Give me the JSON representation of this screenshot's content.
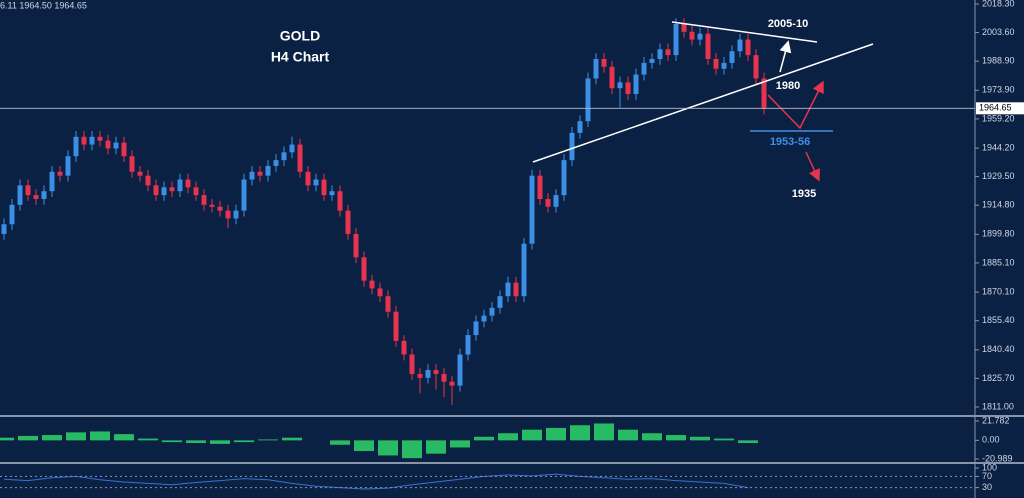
{
  "chart_data": [
    {
      "type": "candlestick",
      "title": "GOLD",
      "subtitle": "H4 Chart",
      "info_text": "6.11 1964.50 1964.65",
      "annotations": [
        "2005-10",
        "1980",
        "1953-56",
        "1935"
      ],
      "current_price": 1964.65,
      "up_color": "#3d8fe6",
      "down_color": "#e8334f",
      "ylim": [
        1811.0,
        2018.3
      ],
      "yticks": [
        {
          "value": 2018.3,
          "label": "2018.30"
        },
        {
          "value": 2003.6,
          "label": "2003.60"
        },
        {
          "value": 1988.9,
          "label": "1988.90"
        },
        {
          "value": 1973.9,
          "label": "1973.90"
        },
        {
          "value": 1959.2,
          "label": "1959.20"
        },
        {
          "value": 1944.2,
          "label": "1944.20"
        },
        {
          "value": 1929.5,
          "label": "1929.50"
        },
        {
          "value": 1914.8,
          "label": "1914.80"
        },
        {
          "value": 1899.8,
          "label": "1899.80"
        },
        {
          "value": 1885.1,
          "label": "1885.10"
        },
        {
          "value": 1870.1,
          "label": "1870.10"
        },
        {
          "value": 1855.4,
          "label": "1855.40"
        },
        {
          "value": 1840.4,
          "label": "1840.40"
        },
        {
          "value": 1825.7,
          "label": "1825.70"
        },
        {
          "value": 1811.0,
          "label": "1811.00"
        }
      ],
      "ohlc": [
        [
          1900,
          1908,
          1897,
          1905
        ],
        [
          1905,
          1918,
          1902,
          1915
        ],
        [
          1915,
          1928,
          1912,
          1925
        ],
        [
          1925,
          1928,
          1917,
          1920
        ],
        [
          1920,
          1923,
          1915,
          1918
        ],
        [
          1918,
          1925,
          1915,
          1922
        ],
        [
          1922,
          1935,
          1919,
          1932
        ],
        [
          1932,
          1935,
          1927,
          1930
        ],
        [
          1930,
          1943,
          1927,
          1940
        ],
        [
          1940,
          1953,
          1937,
          1950
        ],
        [
          1950,
          1953,
          1943,
          1946
        ],
        [
          1946,
          1953,
          1943,
          1950
        ],
        [
          1950,
          1953,
          1945,
          1948
        ],
        [
          1948,
          1951,
          1941,
          1944
        ],
        [
          1944,
          1950,
          1941,
          1947
        ],
        [
          1947,
          1950,
          1937,
          1940
        ],
        [
          1940,
          1943,
          1929,
          1932
        ],
        [
          1932,
          1935,
          1927,
          1930
        ],
        [
          1930,
          1933,
          1922,
          1925
        ],
        [
          1925,
          1928,
          1917,
          1920
        ],
        [
          1920,
          1927,
          1917,
          1924
        ],
        [
          1924,
          1927,
          1919,
          1922
        ],
        [
          1922,
          1931,
          1919,
          1928
        ],
        [
          1928,
          1931,
          1921,
          1924
        ],
        [
          1924,
          1927,
          1917,
          1920
        ],
        [
          1920,
          1923,
          1912,
          1915
        ],
        [
          1915,
          1918,
          1911,
          1914
        ],
        [
          1914,
          1917,
          1909,
          1912
        ],
        [
          1912,
          1915,
          1903,
          1908
        ],
        [
          1908,
          1915,
          1905,
          1912
        ],
        [
          1912,
          1931,
          1909,
          1928
        ],
        [
          1928,
          1935,
          1925,
          1932
        ],
        [
          1932,
          1935,
          1927,
          1930
        ],
        [
          1930,
          1938,
          1927,
          1935
        ],
        [
          1935,
          1941,
          1932,
          1938
        ],
        [
          1938,
          1945,
          1935,
          1942
        ],
        [
          1942,
          1950,
          1939,
          1946
        ],
        [
          1946,
          1949,
          1929,
          1932
        ],
        [
          1932,
          1935,
          1922,
          1925
        ],
        [
          1925,
          1931,
          1922,
          1928
        ],
        [
          1928,
          1931,
          1917,
          1920
        ],
        [
          1920,
          1925,
          1917,
          1922
        ],
        [
          1922,
          1925,
          1909,
          1912
        ],
        [
          1912,
          1915,
          1897,
          1900
        ],
        [
          1900,
          1903,
          1885,
          1888
        ],
        [
          1888,
          1891,
          1873,
          1876
        ],
        [
          1876,
          1879,
          1869,
          1872
        ],
        [
          1872,
          1875,
          1865,
          1868
        ],
        [
          1868,
          1871,
          1857,
          1860
        ],
        [
          1860,
          1863,
          1842,
          1845
        ],
        [
          1845,
          1848,
          1835,
          1838
        ],
        [
          1838,
          1841,
          1825,
          1828
        ],
        [
          1828,
          1831,
          1818,
          1826
        ],
        [
          1826,
          1833,
          1823,
          1830
        ],
        [
          1830,
          1833,
          1820,
          1828
        ],
        [
          1828,
          1831,
          1816,
          1824
        ],
        [
          1824,
          1827,
          1812,
          1822
        ],
        [
          1822,
          1841,
          1819,
          1838
        ],
        [
          1838,
          1851,
          1835,
          1848
        ],
        [
          1848,
          1858,
          1845,
          1855
        ],
        [
          1855,
          1861,
          1852,
          1858
        ],
        [
          1858,
          1865,
          1855,
          1862
        ],
        [
          1862,
          1871,
          1859,
          1868
        ],
        [
          1868,
          1878,
          1865,
          1875
        ],
        [
          1875,
          1878,
          1865,
          1868
        ],
        [
          1868,
          1898,
          1865,
          1895
        ],
        [
          1895,
          1933,
          1892,
          1930
        ],
        [
          1930,
          1933,
          1915,
          1918
        ],
        [
          1918,
          1921,
          1911,
          1914
        ],
        [
          1914,
          1923,
          1911,
          1920
        ],
        [
          1920,
          1941,
          1917,
          1938
        ],
        [
          1938,
          1955,
          1935,
          1952
        ],
        [
          1952,
          1961,
          1949,
          1958
        ],
        [
          1958,
          1983,
          1955,
          1980
        ],
        [
          1980,
          1993,
          1977,
          1990
        ],
        [
          1990,
          1993,
          1983,
          1986
        ],
        [
          1986,
          1989,
          1972,
          1975
        ],
        [
          1975,
          1981,
          1965,
          1978
        ],
        [
          1978,
          1981,
          1969,
          1972
        ],
        [
          1972,
          1985,
          1969,
          1982
        ],
        [
          1982,
          1991,
          1979,
          1988
        ],
        [
          1988,
          1993,
          1985,
          1990
        ],
        [
          1990,
          1998,
          1987,
          1995
        ],
        [
          1995,
          1998,
          1989,
          1992
        ],
        [
          1992,
          2011,
          1989,
          2008
        ],
        [
          2008,
          2011,
          2001,
          2004
        ],
        [
          2004,
          2007,
          1997,
          2000
        ],
        [
          2000,
          2006,
          1997,
          2003
        ],
        [
          2003,
          2006,
          1987,
          1990
        ],
        [
          1990,
          1993,
          1982,
          1985
        ],
        [
          1985,
          1991,
          1982,
          1988
        ],
        [
          1988,
          1997,
          1985,
          1994
        ],
        [
          1994,
          2003,
          1991,
          2000
        ],
        [
          2000,
          2003,
          1989,
          1992
        ],
        [
          1992,
          1995,
          1977,
          1980
        ],
        [
          1980,
          1983,
          1961.5,
          1964.5
        ]
      ]
    },
    {
      "type": "bar",
      "color": "#2fd66a",
      "ylim": [
        -20.989,
        21.782
      ],
      "yticks": [
        21.782,
        {
          "value": 0,
          "label": "0.00"
        },
        -20.989
      ],
      "values": [
        3,
        5,
        6,
        9,
        10,
        7,
        2,
        -2,
        -3,
        -4,
        -2,
        1,
        3,
        0,
        -5,
        -12,
        -17,
        -20,
        -15,
        -8,
        4,
        8,
        12,
        14,
        17,
        19,
        12,
        8,
        6,
        4,
        2,
        -3
      ]
    },
    {
      "type": "line",
      "color": "#3a6fd8",
      "ylim": [
        0,
        100
      ],
      "yticks": [
        100,
        70,
        30
      ],
      "values": [
        60,
        55,
        65,
        70,
        58,
        50,
        45,
        40,
        48,
        55,
        62,
        58,
        45,
        35,
        30,
        25,
        28,
        40,
        50,
        60,
        70,
        75,
        72,
        78,
        70,
        65,
        60,
        62,
        55,
        50,
        45,
        30
      ]
    }
  ]
}
